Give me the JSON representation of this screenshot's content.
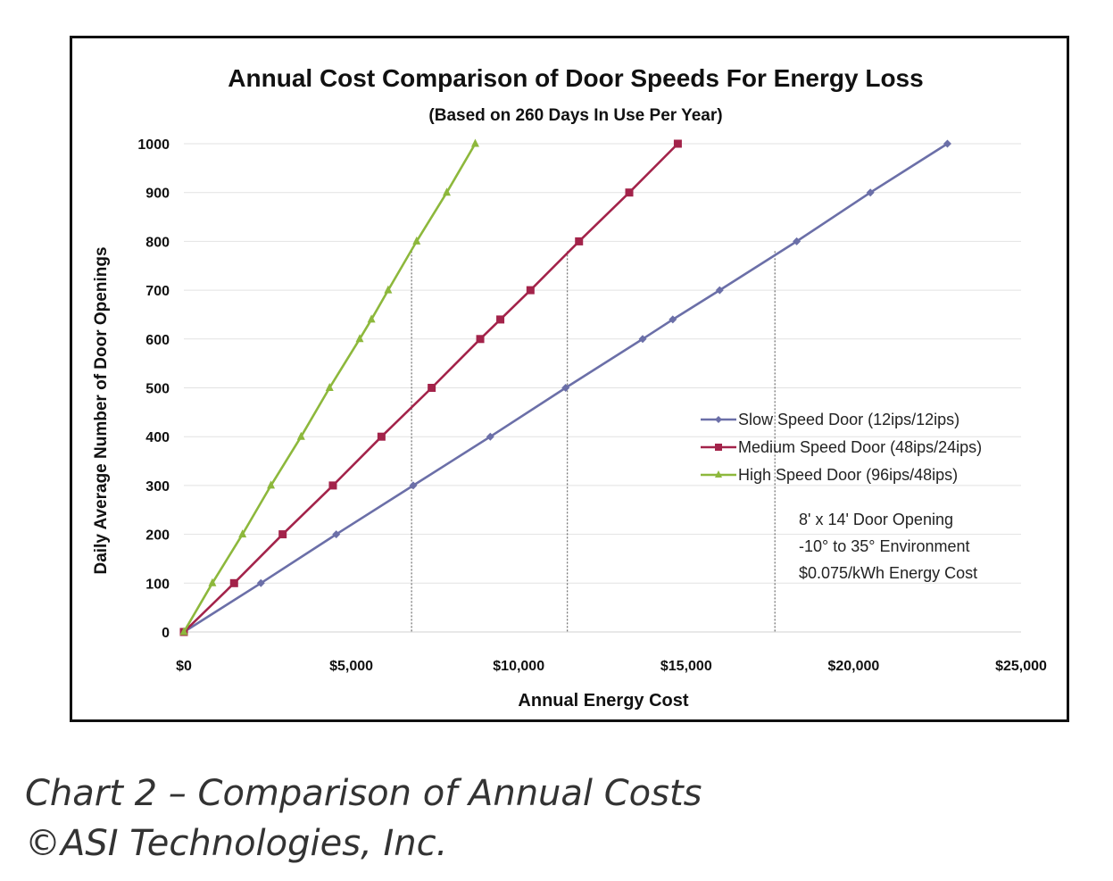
{
  "chart_data": {
    "type": "line",
    "title": "Annual Cost Comparison of Door Speeds For Energy Loss",
    "subtitle": "(Based on 260 Days In Use Per Year)",
    "xlabel": "Annual Energy Cost",
    "ylabel": "Daily Average Number of Door Openings",
    "xlim": [
      0,
      25000
    ],
    "ylim": [
      0,
      1000
    ],
    "x_ticks": [
      0,
      5000,
      10000,
      15000,
      20000,
      25000
    ],
    "x_tick_labels": [
      "$0",
      "$5,000",
      "$10,000",
      "$15,000",
      "$20,000",
      "$25,000"
    ],
    "y_ticks": [
      0,
      100,
      200,
      300,
      400,
      500,
      600,
      700,
      800,
      900,
      1000
    ],
    "y_tick_labels": [
      "0",
      "100",
      "200",
      "300",
      "400",
      "500",
      "600",
      "700",
      "800",
      "900",
      "1000"
    ],
    "grid": true,
    "legend_position": "right",
    "series": [
      {
        "name": "Slow Speed Door (12ips/12ips)",
        "color": "#6b6fa8",
        "marker": "diamond",
        "points": [
          [
            0,
            0
          ],
          [
            2300,
            100
          ],
          [
            4550,
            200
          ],
          [
            6850,
            300
          ],
          [
            9150,
            400
          ],
          [
            11400,
            500
          ],
          [
            13700,
            600
          ],
          [
            14600,
            640
          ],
          [
            16000,
            700
          ],
          [
            18300,
            800
          ],
          [
            20500,
            900
          ],
          [
            22800,
            1000
          ]
        ]
      },
      {
        "name": "Medium Speed Door (48ips/24ips)",
        "color": "#a3234a",
        "marker": "square",
        "points": [
          [
            0,
            0
          ],
          [
            1500,
            100
          ],
          [
            2950,
            200
          ],
          [
            4450,
            300
          ],
          [
            5900,
            400
          ],
          [
            7400,
            500
          ],
          [
            8850,
            600
          ],
          [
            9450,
            640
          ],
          [
            10350,
            700
          ],
          [
            11800,
            800
          ],
          [
            13300,
            900
          ],
          [
            14750,
            1000
          ]
        ]
      },
      {
        "name": "High Speed Door (96ips/48ips)",
        "color": "#8db83c",
        "marker": "triangle",
        "points": [
          [
            0,
            0
          ],
          [
            850,
            100
          ],
          [
            1750,
            200
          ],
          [
            2600,
            300
          ],
          [
            3500,
            400
          ],
          [
            4350,
            500
          ],
          [
            5250,
            600
          ],
          [
            5600,
            640
          ],
          [
            6100,
            700
          ],
          [
            6950,
            800
          ],
          [
            7850,
            900
          ],
          [
            8700,
            1000
          ]
        ]
      }
    ],
    "reference_lines_x": [
      6800,
      11450,
      17650
    ],
    "annotations": [
      "8' x 14' Door Opening",
      "-10° to 35° Environment",
      "$0.075/kWh Energy Cost"
    ]
  },
  "caption": {
    "line1": "Chart 2 – Comparison of Annual Costs",
    "line2": "©ASI Technologies, Inc."
  }
}
